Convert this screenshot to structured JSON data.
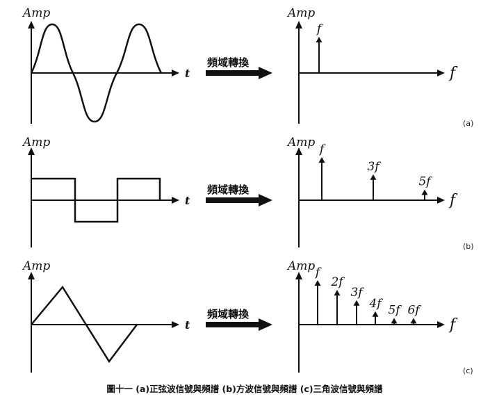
{
  "panels": [
    {
      "id": "a",
      "label": "(a)",
      "wave": "sine",
      "time_amp_label": "Amp",
      "time_axis_label": "t",
      "arrow_text": "頻域轉換",
      "freq_amp_label": "Amp",
      "freq_axis_label": "f",
      "harmonics": [
        {
          "label": "f",
          "amplitude": 1.0
        }
      ]
    },
    {
      "id": "b",
      "label": "(b)",
      "wave": "square",
      "time_amp_label": "Amp",
      "time_axis_label": "t",
      "arrow_text": "頻域轉換",
      "freq_amp_label": "Amp",
      "freq_axis_label": "f",
      "harmonics": [
        {
          "label": "f",
          "amplitude": 1.0
        },
        {
          "label": "3f",
          "amplitude": 0.6
        },
        {
          "label": "5f",
          "amplitude": 0.25
        }
      ]
    },
    {
      "id": "c",
      "label": "(c)",
      "wave": "triangle",
      "time_amp_label": "Amp",
      "time_axis_label": "t",
      "arrow_text": "頻域轉換",
      "freq_amp_label": "Amp",
      "freq_axis_label": "f",
      "harmonics": [
        {
          "label": "f",
          "amplitude": 1.0
        },
        {
          "label": "2f",
          "amplitude": 0.78
        },
        {
          "label": "3f",
          "amplitude": 0.55
        },
        {
          "label": "4f",
          "amplitude": 0.3
        },
        {
          "label": "5f",
          "amplitude": 0.15
        },
        {
          "label": "6f",
          "amplitude": 0.15
        }
      ]
    }
  ],
  "caption": "圖十一  (a)正弦波信號與頻譜  (b)方波信號與頻譜  (c)三角波信號與頻譜"
}
